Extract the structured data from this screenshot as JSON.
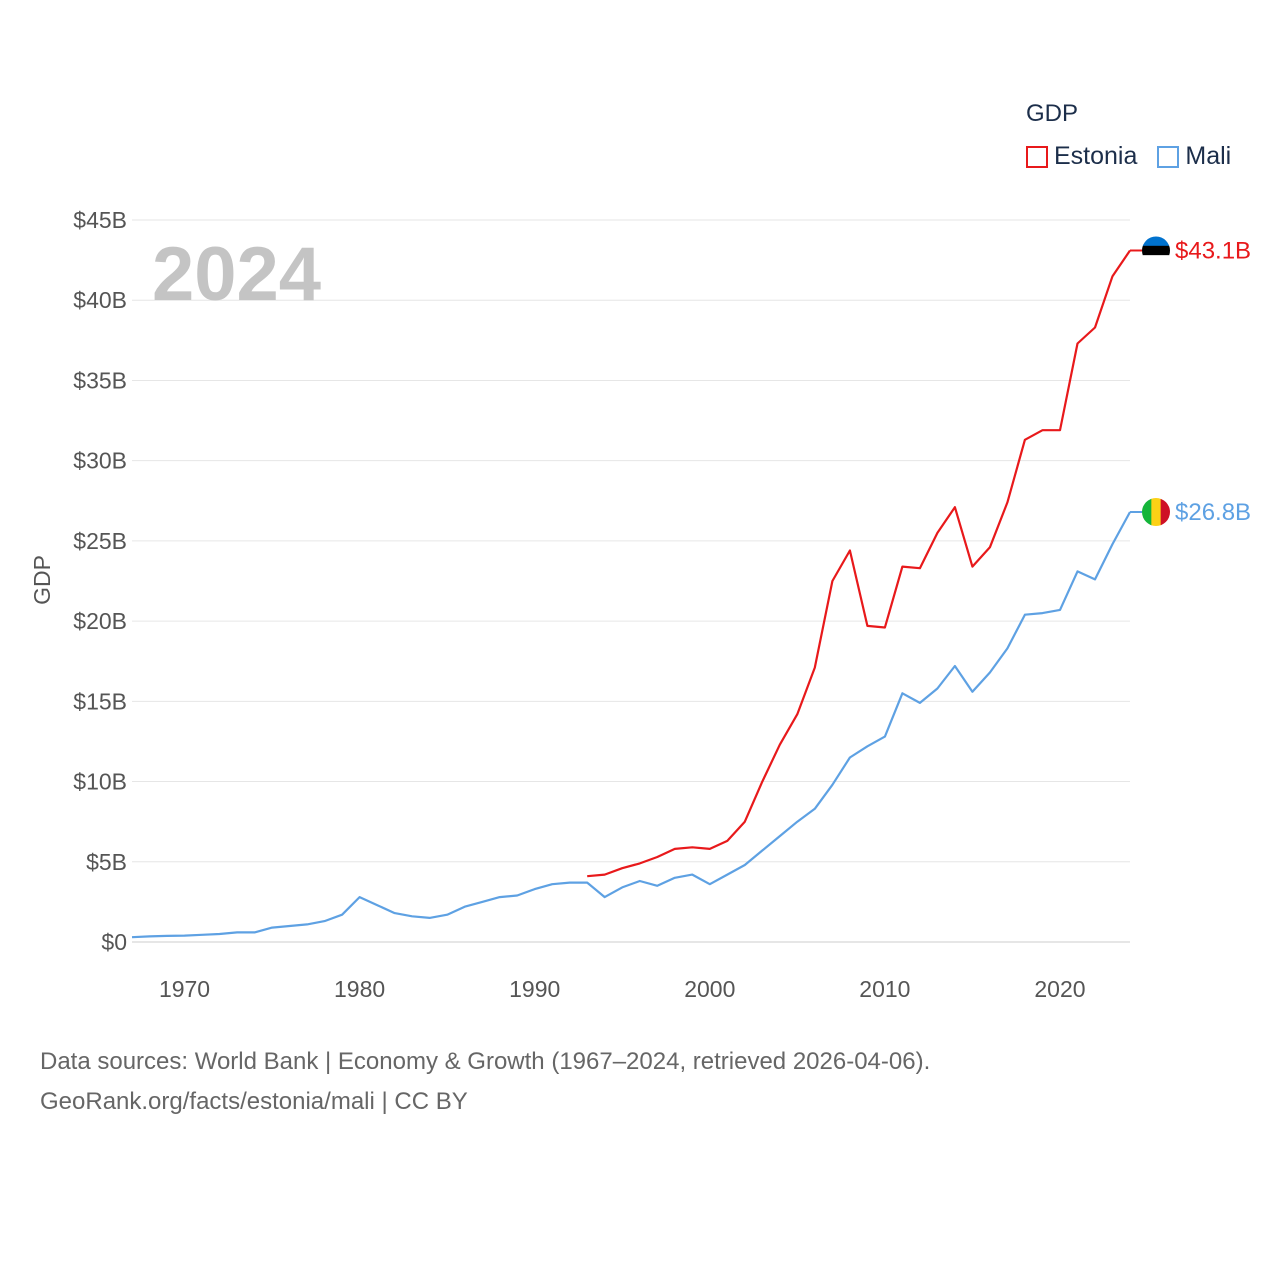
{
  "chart_data": {
    "type": "line",
    "title": "GDP",
    "ylabel": "GDP",
    "xlabel": "",
    "year_label": "2024",
    "xlim": [
      1967,
      2024
    ],
    "ylim": [
      0,
      45
    ],
    "y_ticks": [
      0,
      5,
      10,
      15,
      20,
      25,
      30,
      35,
      40,
      45
    ],
    "y_tick_labels": [
      "$0",
      "$5B",
      "$10B",
      "$15B",
      "$20B",
      "$25B",
      "$30B",
      "$35B",
      "$40B",
      "$45B"
    ],
    "x_ticks": [
      1970,
      1980,
      1990,
      2000,
      2010,
      2020
    ],
    "x_tick_labels": [
      "1970",
      "1980",
      "1990",
      "2000",
      "2010",
      "2020"
    ],
    "series": [
      {
        "name": "Estonia",
        "color": "#e8191b",
        "end_label": "$43.1B",
        "flag": [
          "#0072ce",
          "#000000",
          "#ffffff"
        ],
        "x": [
          1993,
          1994,
          1995,
          1996,
          1997,
          1998,
          1999,
          2000,
          2001,
          2002,
          2003,
          2004,
          2005,
          2006,
          2007,
          2008,
          2009,
          2010,
          2011,
          2012,
          2013,
          2014,
          2015,
          2016,
          2017,
          2018,
          2019,
          2020,
          2021,
          2022,
          2023,
          2024
        ],
        "y": [
          4.1,
          4.2,
          4.6,
          4.9,
          5.3,
          5.8,
          5.9,
          5.8,
          6.3,
          7.5,
          10.0,
          12.3,
          14.2,
          17.1,
          22.5,
          24.4,
          19.7,
          19.6,
          23.4,
          23.3,
          25.5,
          27.1,
          23.4,
          24.6,
          27.4,
          31.3,
          31.9,
          31.9,
          37.3,
          38.3,
          41.5,
          43.1
        ]
      },
      {
        "name": "Mali",
        "color": "#5ea1e3",
        "end_label": "$26.8B",
        "flag": [
          "#14b53a",
          "#fcd116",
          "#ce1126"
        ],
        "x": [
          1967,
          1968,
          1969,
          1970,
          1971,
          1972,
          1973,
          1974,
          1975,
          1976,
          1977,
          1978,
          1979,
          1980,
          1981,
          1982,
          1983,
          1984,
          1985,
          1986,
          1987,
          1988,
          1989,
          1990,
          1991,
          1992,
          1993,
          1994,
          1995,
          1996,
          1997,
          1998,
          1999,
          2000,
          2001,
          2002,
          2003,
          2004,
          2005,
          2006,
          2007,
          2008,
          2009,
          2010,
          2011,
          2012,
          2013,
          2014,
          2015,
          2016,
          2017,
          2018,
          2019,
          2020,
          2021,
          2022,
          2023,
          2024
        ],
        "y": [
          0.3,
          0.35,
          0.38,
          0.4,
          0.45,
          0.5,
          0.6,
          0.6,
          0.9,
          1.0,
          1.1,
          1.3,
          1.7,
          2.8,
          2.3,
          1.8,
          1.6,
          1.5,
          1.7,
          2.2,
          2.5,
          2.8,
          2.9,
          3.3,
          3.6,
          3.7,
          3.7,
          2.8,
          3.4,
          3.8,
          3.5,
          4.0,
          4.2,
          3.6,
          4.2,
          4.8,
          5.7,
          6.6,
          7.5,
          8.3,
          9.8,
          11.5,
          12.2,
          12.8,
          15.5,
          14.9,
          15.8,
          17.2,
          15.6,
          16.8,
          18.3,
          20.4,
          20.5,
          20.7,
          23.1,
          22.6,
          24.8,
          26.8
        ]
      }
    ]
  },
  "legend": {
    "title": "GDP",
    "items": [
      {
        "label": "Estonia",
        "color": "#e8191b"
      },
      {
        "label": "Mali",
        "color": "#5ea1e3"
      }
    ]
  },
  "footer": {
    "line1": "Data sources: World Bank | Economy & Growth (1967–2024, retrieved 2026-04-06).",
    "line2": "GeoRank.org/facts/estonia/mali | CC BY"
  }
}
